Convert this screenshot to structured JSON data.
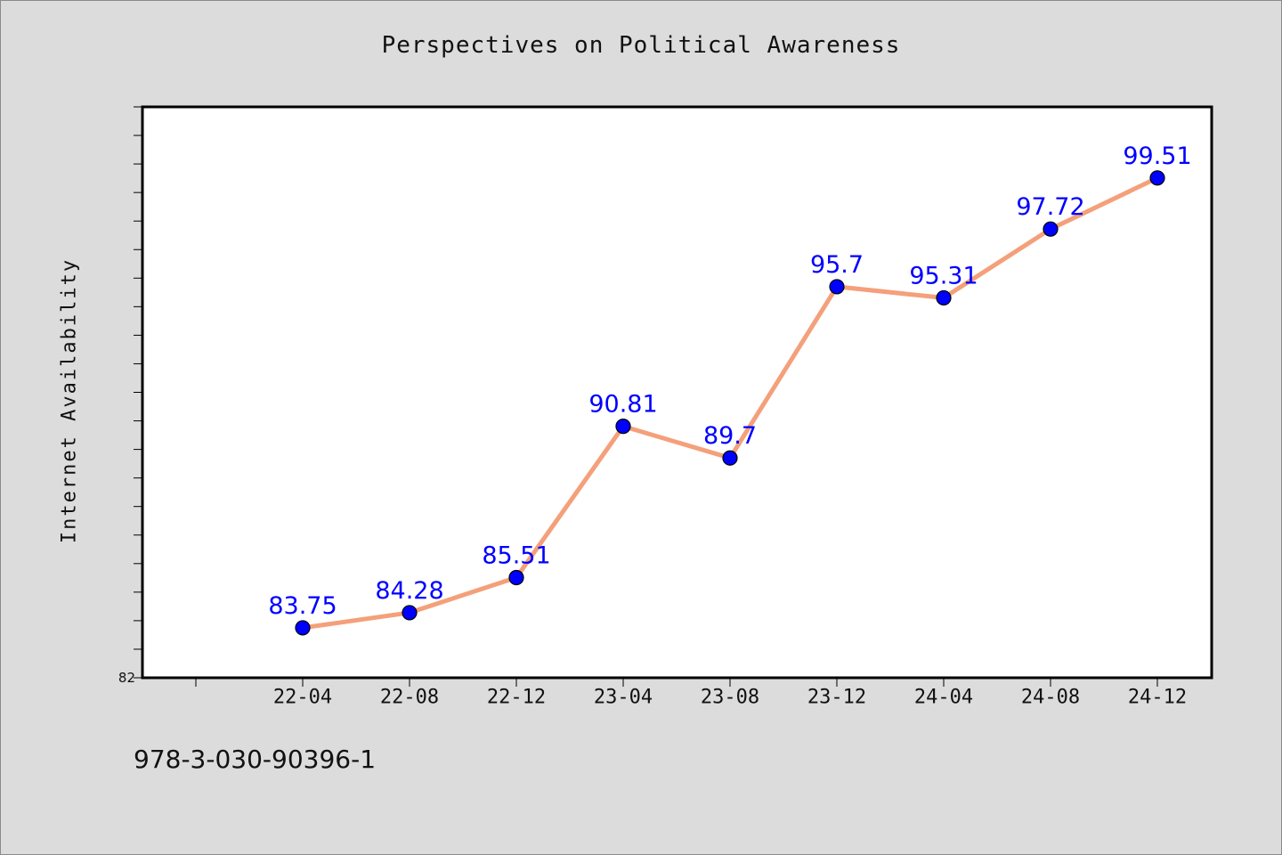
{
  "chart_data": {
    "type": "line",
    "title": "Perspectives on Political Awareness",
    "xlabel": "",
    "ylabel": "Internet Availability",
    "categories": [
      "22-04",
      "22-08",
      "22-12",
      "23-04",
      "23-08",
      "23-12",
      "24-04",
      "24-08",
      "24-12"
    ],
    "series": [
      {
        "values": [
          83.75,
          84.28,
          85.51,
          90.81,
          89.7,
          95.7,
          95.31,
          97.72,
          99.51
        ],
        "labels": [
          "83.75",
          "84.28",
          "85.51",
          "90.81",
          "89.7",
          "95.7",
          "95.31",
          "97.72",
          "99.51"
        ]
      }
    ],
    "ylim": [
      82,
      102
    ],
    "y_tick_labels": [
      "82"
    ],
    "grid": false,
    "legend": "none",
    "colors": {
      "line": "#f4a07a",
      "marker": "#0000ff",
      "data_label": "#0000ff",
      "plot_bg": "#ffffff",
      "page_bg": "#dcdcdc"
    }
  },
  "footer": {
    "code": "978-3-030-90396-1"
  }
}
